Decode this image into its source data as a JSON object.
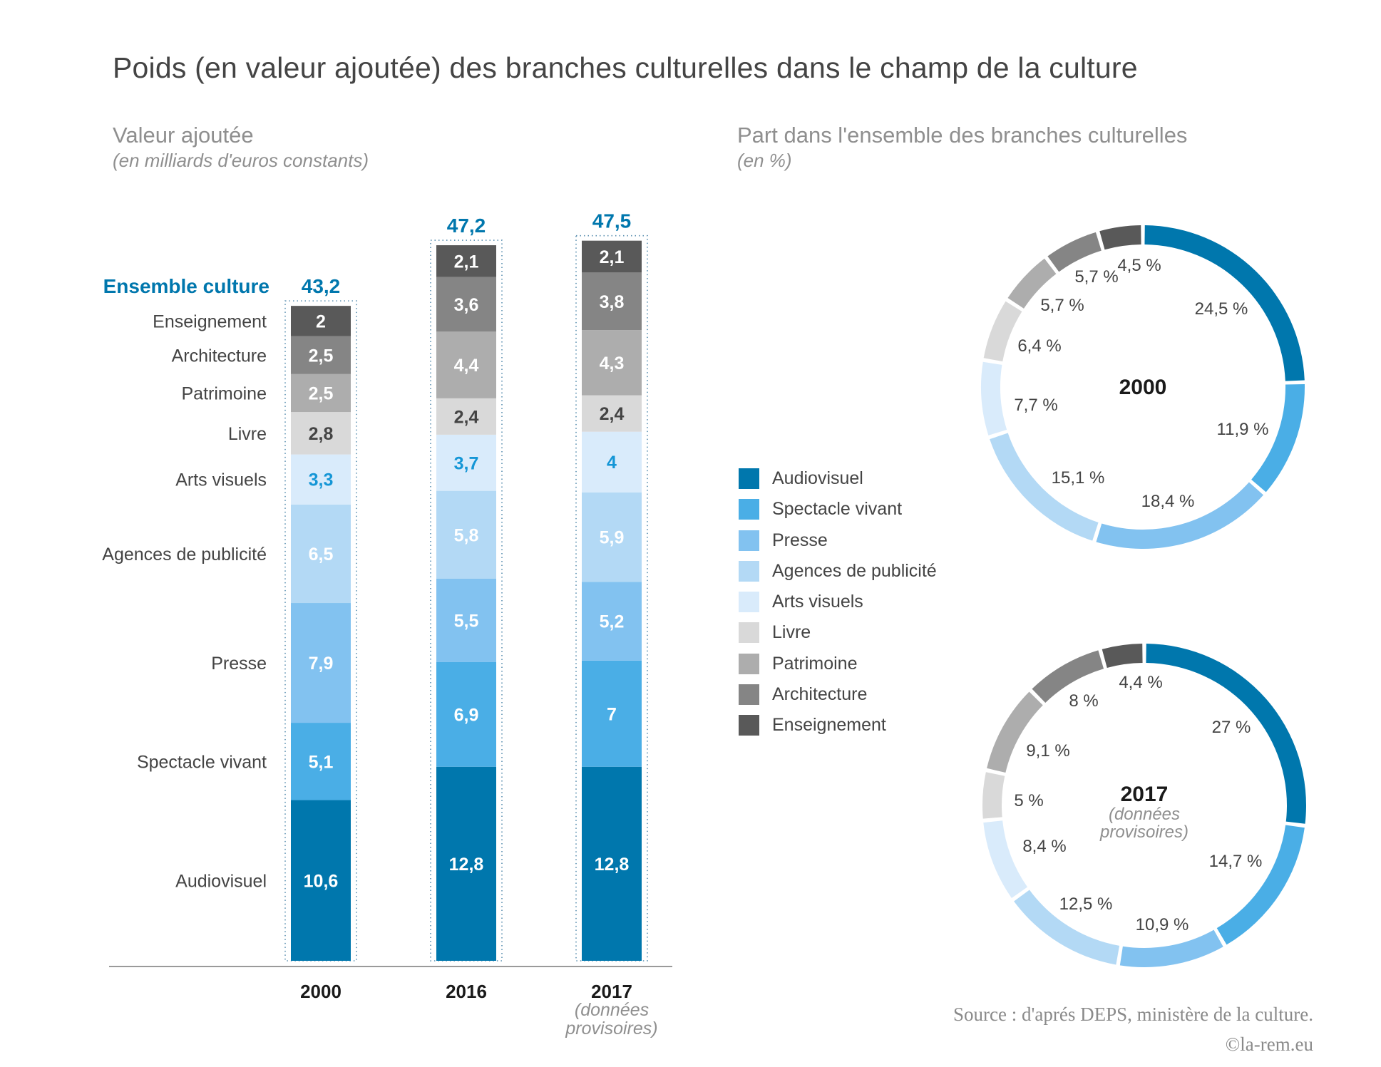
{
  "title": "Poids (en valeur ajoutée) des branches culturelles dans le champ de la culture",
  "left_panel": {
    "heading": "Valeur ajoutée",
    "note": "(en milliards d'euros constants)",
    "total_label": "Ensemble culture"
  },
  "right_panel": {
    "heading": "Part dans l'ensemble des branches culturelles",
    "note": "(en %)"
  },
  "source": "Source : d'aprés DEPS, ministère de la culture.",
  "copyright": "©la-rem.eu",
  "colors": {
    "accent": "#0077AD",
    "total_text": "#0077AD",
    "axis": "#9a9a9a",
    "dotted_box": "#5a8fb0"
  },
  "chart_data": [
    {
      "type": "bar",
      "stacked": true,
      "title": "Valeur ajoutée",
      "subtitle": "(en milliards d'euros constants)",
      "xlabel": "",
      "ylabel": "",
      "categories": [
        "2000",
        "2016",
        "2017"
      ],
      "category_notes": [
        "",
        "",
        "(données provisoires)"
      ],
      "totals": [
        43.2,
        47.2,
        47.5
      ],
      "totals_labels": [
        "43,2",
        "47,2",
        "47,5"
      ],
      "series": [
        {
          "name": "Audiovisuel",
          "color": "#0077AD",
          "label_color": "#ffffff",
          "values": [
            10.6,
            12.8,
            12.8
          ],
          "labels": [
            "10,6",
            "12,8",
            "12,8"
          ]
        },
        {
          "name": "Spectacle vivant",
          "color": "#4AAEE6",
          "label_color": "#ffffff",
          "values": [
            5.1,
            6.9,
            7
          ],
          "labels": [
            "5,1",
            "6,9",
            "7"
          ]
        },
        {
          "name": "Presse",
          "color": "#82C2F0",
          "label_color": "#ffffff",
          "values": [
            7.9,
            5.5,
            5.2
          ],
          "labels": [
            "7,9",
            "5,5",
            "5,2"
          ]
        },
        {
          "name": "Agences de publicité",
          "color": "#B3D9F5",
          "label_color": "#ffffff",
          "values": [
            6.5,
            5.8,
            5.9
          ],
          "labels": [
            "6,5",
            "5,8",
            "5,9"
          ]
        },
        {
          "name": "Arts visuels",
          "color": "#D9EBFB",
          "label_color": "#1596D6",
          "values": [
            3.3,
            3.7,
            4
          ],
          "labels": [
            "3,3",
            "3,7",
            "4"
          ]
        },
        {
          "name": "Livre",
          "color": "#D9D9D9",
          "label_color": "#444444",
          "values": [
            2.8,
            2.4,
            2.4
          ],
          "labels": [
            "2,8",
            "2,4",
            "2,4"
          ]
        },
        {
          "name": "Patrimoine",
          "color": "#ADADAD",
          "label_color": "#ffffff",
          "values": [
            2.5,
            4.4,
            4.3
          ],
          "labels": [
            "2,5",
            "4,4",
            "4,3"
          ]
        },
        {
          "name": "Architecture",
          "color": "#858585",
          "label_color": "#ffffff",
          "values": [
            2.5,
            3.6,
            3.8
          ],
          "labels": [
            "2,5",
            "3,6",
            "3,8"
          ]
        },
        {
          "name": "Enseignement",
          "color": "#595959",
          "label_color": "#ffffff",
          "values": [
            2,
            2.1,
            2.1
          ],
          "labels": [
            "2",
            "2,1",
            "2,1"
          ]
        }
      ],
      "ylim": [
        0,
        47.5
      ],
      "grid": false
    },
    {
      "type": "pie",
      "donut": true,
      "title": "2000",
      "subtitle": "",
      "categories": [
        "Audiovisuel",
        "Spectacle vivant",
        "Presse",
        "Agences de publicité",
        "Arts visuels",
        "Livre",
        "Patrimoine",
        "Architecture",
        "Enseignement"
      ],
      "values": [
        24.5,
        11.9,
        18.4,
        15.1,
        7.7,
        6.4,
        5.7,
        5.7,
        4.5
      ],
      "labels": [
        "24,5 %",
        "11,9 %",
        "18,4 %",
        "15,1 %",
        "7,7 %",
        "6,4 %",
        "5,7 %",
        "5,7 %",
        "4,5 %"
      ]
    },
    {
      "type": "pie",
      "donut": true,
      "title": "2017",
      "subtitle": "(données provisoires)",
      "categories": [
        "Audiovisuel",
        "Spectacle vivant",
        "Presse",
        "Agences de publicité",
        "Arts visuels",
        "Livre",
        "Patrimoine",
        "Architecture",
        "Enseignement"
      ],
      "values": [
        27,
        14.7,
        10.9,
        12.5,
        8.4,
        5,
        9.1,
        8,
        4.4
      ],
      "labels": [
        "27 %",
        "14,7 %",
        "10,9 %",
        "12,5 %",
        "8,4 %",
        "5 %",
        "9,1 %",
        "8 %",
        "4,4 %"
      ]
    }
  ],
  "legend": {
    "placement": "center-right",
    "items": [
      {
        "label": "Audiovisuel",
        "color": "#0077AD"
      },
      {
        "label": "Spectacle vivant",
        "color": "#4AAEE6"
      },
      {
        "label": "Presse",
        "color": "#82C2F0"
      },
      {
        "label": "Agences de publicité",
        "color": "#B3D9F5"
      },
      {
        "label": "Arts visuels",
        "color": "#D9EBFB"
      },
      {
        "label": "Livre",
        "color": "#D9D9D9"
      },
      {
        "label": "Patrimoine",
        "color": "#ADADAD"
      },
      {
        "label": "Architecture",
        "color": "#858585"
      },
      {
        "label": "Enseignement",
        "color": "#595959"
      }
    ]
  }
}
